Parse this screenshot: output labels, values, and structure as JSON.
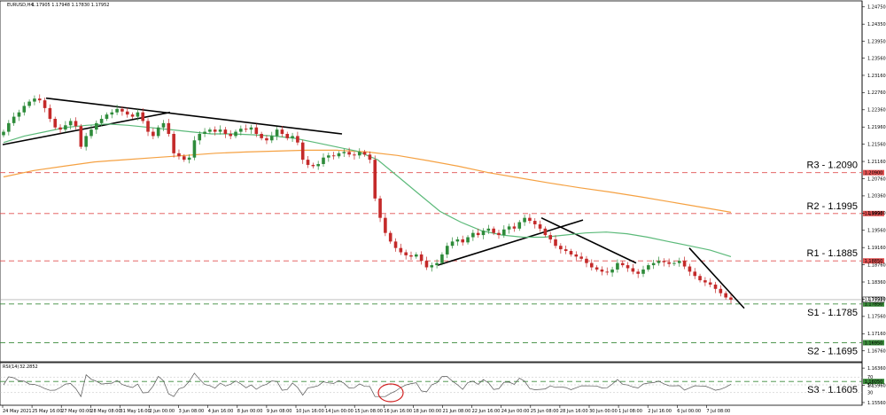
{
  "chart_data": {
    "type": "candlestick",
    "symbol": "EURUSD,H4",
    "ohlc_readout": "1.17905 1.17948 1.17830 1.17952",
    "price_range": [
      1.1545,
      1.2485
    ],
    "y_ticks": [
      "1.24750",
      "1.24350",
      "1.23950",
      "1.23560",
      "1.23160",
      "1.22760",
      "1.22360",
      "1.21960",
      "1.21560",
      "1.21160",
      "1.20760",
      "1.20360",
      "1.19960",
      "1.19560",
      "1.19160",
      "1.18760",
      "1.18360",
      "1.17960",
      "1.17560",
      "1.17160",
      "1.16760",
      "1.16360",
      "1.15960",
      "1.15560"
    ],
    "x_labels": [
      "24 May 2021",
      "25 May 16:00",
      "27 May 00:00",
      "28 May 08:00",
      "31 May 16:00",
      "2 Jun 00:00",
      "3 Jun 08:00",
      "4 Jun 16:00",
      "8 Jun 00:00",
      "9 Jun 08:00",
      "10 Jun 16:00",
      "14 Jun 00:00",
      "15 Jun 08:00",
      "16 Jun 16:00",
      "18 Jun 00:00",
      "21 Jun 08:00",
      "22 Jun 16:00",
      "24 Jun 00:00",
      "25 Jun 08:00",
      "28 Jun 16:00",
      "30 Jun 00:00",
      "1 Jul 08:00",
      "2 Jul 16:00",
      "6 Jul 00:00",
      "7 Jul 08:00"
    ],
    "levels": [
      {
        "label": "R3 - 1.2090",
        "price": 1.209,
        "tag": "1.20900",
        "color": "#e05050"
      },
      {
        "label": "R2 - 1.1995",
        "price": 1.1995,
        "tag": "1.19950",
        "color": "#e05050"
      },
      {
        "label": "R1 - 1.1885",
        "price": 1.1885,
        "tag": "1.18850",
        "color": "#e05050"
      },
      {
        "label": "S1 - 1.1785",
        "price": 1.1785,
        "tag": "1.17850",
        "color": "#3a8a3a"
      },
      {
        "label": "S2 - 1.1695",
        "price": 1.1695,
        "tag": "1.16950",
        "color": "#3a8a3a"
      },
      {
        "label": "S3 - 1.1605",
        "price": 1.1605,
        "tag": "1.16050",
        "color": "#3a8a3a"
      }
    ],
    "current_price": {
      "price": 1.1795,
      "tag": "1.17952"
    },
    "closes": [
      1.2185,
      1.2205,
      1.222,
      1.223,
      1.2245,
      1.2255,
      1.2262,
      1.2258,
      1.224,
      1.2215,
      1.2195,
      1.219,
      1.22,
      1.221,
      1.2198,
      1.215,
      1.2175,
      1.219,
      1.2205,
      1.2215,
      1.2225,
      1.223,
      1.2238,
      1.2232,
      1.2225,
      1.222,
      1.223,
      1.221,
      1.2185,
      1.2175,
      1.2195,
      1.2205,
      1.218,
      1.2135,
      1.2128,
      1.212,
      1.2125,
      1.2165,
      1.218,
      1.2185,
      1.219,
      1.2185,
      1.219,
      1.218,
      1.2175,
      1.2185,
      1.2192,
      1.219,
      1.2195,
      1.218,
      1.217,
      1.2165,
      1.2175,
      1.219,
      1.218,
      1.217,
      1.2175,
      1.216,
      1.212,
      1.2108,
      1.2105,
      1.211,
      1.2125,
      1.213,
      1.2128,
      1.2135,
      1.2138,
      1.2132,
      1.213,
      1.2138,
      1.2132,
      1.212,
      1.203,
      1.1985,
      1.195,
      1.193,
      1.1915,
      1.1905,
      1.1898,
      1.1895,
      1.19,
      1.1885,
      1.187,
      1.1875,
      1.188,
      1.19,
      1.192,
      1.193,
      1.1935,
      1.1928,
      1.194,
      1.195,
      1.1945,
      1.1955,
      1.196,
      1.195,
      1.1945,
      1.1958,
      1.1965,
      1.196,
      1.1975,
      1.1985,
      1.1978,
      1.197,
      1.196,
      1.1945,
      1.1935,
      1.192,
      1.1912,
      1.1908,
      1.19,
      1.1895,
      1.189,
      1.188,
      1.187,
      1.1865,
      1.186,
      1.1858,
      1.1865,
      1.188,
      1.1875,
      1.1868,
      1.186,
      1.1855,
      1.1865,
      1.1875,
      1.188,
      1.1885,
      1.1882,
      1.1878,
      1.188,
      1.1885,
      1.1872,
      1.186,
      1.185,
      1.184,
      1.1835,
      1.183,
      1.182,
      1.181,
      1.18,
      1.1795
    ],
    "ma_fast": [
      1.216,
      1.2175,
      1.2185,
      1.2195,
      1.22,
      1.2203,
      1.22,
      1.2195,
      1.219,
      1.2185,
      1.218,
      1.218,
      1.2178,
      1.2175,
      1.217,
      1.216,
      1.215,
      1.214,
      1.212,
      1.208,
      1.204,
      1.2,
      1.1975,
      1.1955,
      1.1945,
      1.194,
      1.194,
      1.1945,
      1.195,
      1.1952,
      1.1948,
      1.194,
      1.193,
      1.192,
      1.191,
      1.1895
    ],
    "ma_slow": [
      1.208,
      1.2095,
      1.2105,
      1.2115,
      1.212,
      1.2125,
      1.213,
      1.2135,
      1.2138,
      1.214,
      1.2142,
      1.2142,
      1.2138,
      1.213,
      1.2118,
      1.2105,
      1.209,
      1.2078,
      1.2066,
      1.2055,
      1.2045,
      1.2034,
      1.2022,
      1.201,
      1.1998
    ],
    "indicator": {
      "name": "RSI(14)",
      "value": "32.2852",
      "scale": [
        "70",
        "50",
        "30"
      ]
    }
  }
}
